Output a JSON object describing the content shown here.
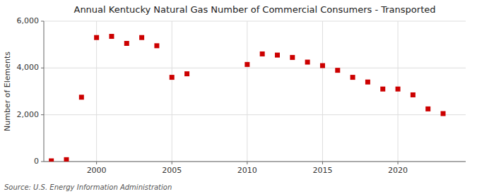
{
  "chart_data": {
    "type": "scatter",
    "title": "Annual Kentucky Natural Gas Number of Commercial Consumers - Transported",
    "y_label": "Number of Elements",
    "annotations": [
      "Source: U.S. Energy Information Administration"
    ],
    "x": [
      1997,
      1998,
      1999,
      2000,
      2001,
      2002,
      2003,
      2004,
      2005,
      2006,
      2010,
      2011,
      2012,
      2013,
      2014,
      2015,
      2016,
      2017,
      2018,
      2019,
      2020,
      2021,
      2022,
      2023
    ],
    "values": [
      30,
      80,
      2750,
      5300,
      5350,
      5050,
      5300,
      4950,
      3600,
      3750,
      4150,
      4600,
      4550,
      4450,
      4250,
      4100,
      3900,
      3600,
      3400,
      3100,
      3100,
      2850,
      2250,
      2050
    ],
    "color": "#cc0000",
    "marker": "square",
    "xlim": [
      1996.5,
      2024.5
    ],
    "xticks": [
      2000,
      2005,
      2010,
      2015,
      2020
    ],
    "ylim": [
      0,
      6000
    ],
    "yticks": [
      0,
      {
        "value": 2000,
        "label": "2,000"
      },
      {
        "value": 4000,
        "label": "4,000"
      },
      {
        "value": 6000,
        "label": "6,000"
      }
    ],
    "grid": true
  }
}
